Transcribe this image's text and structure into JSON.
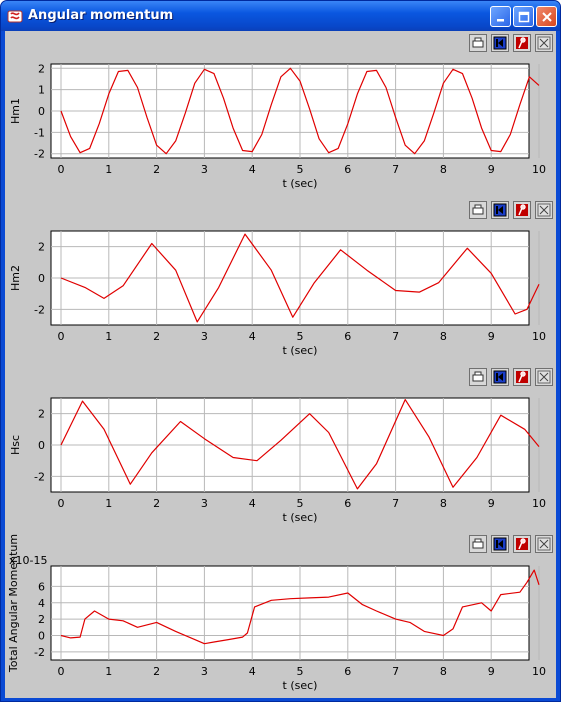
{
  "window": {
    "title": "Angular momentum",
    "controls": [
      "minimize-icon",
      "maximize-icon",
      "close-icon"
    ]
  },
  "toolbar_icons": [
    "print-icon",
    "reset-view-icon",
    "marker-icon",
    "fit-zoom-icon"
  ],
  "chart_data": [
    {
      "type": "line",
      "ylabel": "Hm1",
      "xlabel": "t (sec)",
      "xlim": [
        0,
        10
      ],
      "ylim": [
        -2.2,
        2.2
      ],
      "xticks": [
        "0",
        "1",
        "2",
        "3",
        "4",
        "5",
        "6",
        "7",
        "8",
        "9",
        "10"
      ],
      "yticks": [
        2,
        1,
        0,
        -1,
        -2
      ],
      "grid": true,
      "series": [
        {
          "color": "#e00000",
          "x": [
            0,
            0.2,
            0.4,
            0.6,
            0.8,
            1,
            1.2,
            1.4,
            1.6,
            1.8,
            2,
            2.2,
            2.4,
            2.6,
            2.8,
            3,
            3.2,
            3.4,
            3.6,
            3.8,
            4,
            4.2,
            4.4,
            4.6,
            4.8,
            5,
            5.2,
            5.4,
            5.6,
            5.8,
            6,
            6.2,
            6.4,
            6.6,
            6.8,
            7,
            7.2,
            7.4,
            7.6,
            7.8,
            8,
            8.2,
            8.4,
            8.6,
            8.8,
            9,
            9.2,
            9.4,
            9.6,
            9.8,
            10
          ],
          "y": [
            0,
            -1.2,
            -1.95,
            -1.75,
            -0.6,
            0.8,
            1.85,
            1.9,
            1.1,
            -0.3,
            -1.6,
            -2.0,
            -1.4,
            -0.1,
            1.3,
            1.95,
            1.75,
            0.6,
            -0.8,
            -1.85,
            -1.9,
            -1.1,
            0.3,
            1.6,
            2.0,
            1.4,
            0.1,
            -1.3,
            -1.95,
            -1.75,
            -0.6,
            0.8,
            1.85,
            1.9,
            1.1,
            -0.3,
            -1.6,
            -2.0,
            -1.4,
            -0.1,
            1.3,
            1.95,
            1.75,
            0.6,
            -0.8,
            -1.85,
            -1.9,
            -1.1,
            0.3,
            1.6,
            1.2
          ]
        }
      ]
    },
    {
      "type": "line",
      "ylabel": "Hm2",
      "xlabel": "t (sec)",
      "xlim": [
        0,
        10
      ],
      "ylim": [
        -3,
        3
      ],
      "xticks": [
        "0",
        "1",
        "2",
        "3",
        "4",
        "5",
        "6",
        "7",
        "8",
        "9",
        "10"
      ],
      "yticks": [
        2,
        0,
        -2
      ],
      "grid": true,
      "series": [
        {
          "color": "#e00000",
          "x": [
            0,
            0.5,
            0.9,
            1.3,
            1.9,
            2.4,
            2.85,
            3.3,
            3.85,
            4.4,
            4.85,
            5.3,
            5.85,
            6.4,
            7.0,
            7.5,
            7.9,
            8.5,
            9.0,
            9.5,
            9.75,
            10
          ],
          "y": [
            0,
            -0.6,
            -1.3,
            -0.5,
            2.2,
            0.5,
            -2.8,
            -0.6,
            2.8,
            0.5,
            -2.5,
            -0.3,
            1.8,
            0.5,
            -0.8,
            -0.9,
            -0.3,
            1.9,
            0.3,
            -2.3,
            -2.0,
            -0.4
          ]
        }
      ]
    },
    {
      "type": "line",
      "ylabel": "Hsc",
      "xlabel": "t (sec)",
      "xlim": [
        0,
        10
      ],
      "ylim": [
        -3,
        3
      ],
      "xticks": [
        "0",
        "1",
        "2",
        "3",
        "4",
        "5",
        "6",
        "7",
        "8",
        "9",
        "10"
      ],
      "yticks": [
        2,
        0,
        -2
      ],
      "grid": true,
      "series": [
        {
          "color": "#e00000",
          "x": [
            0,
            0.45,
            0.9,
            1.45,
            1.9,
            2.5,
            3.0,
            3.6,
            4.1,
            4.6,
            5.2,
            5.6,
            6.2,
            6.6,
            7.2,
            7.7,
            8.2,
            8.7,
            9.2,
            9.7,
            10
          ],
          "y": [
            0,
            2.8,
            1.0,
            -2.5,
            -0.5,
            1.5,
            0.4,
            -0.8,
            -1.0,
            0.3,
            2.0,
            0.8,
            -2.8,
            -1.2,
            2.9,
            0.5,
            -2.7,
            -0.8,
            1.9,
            1.0,
            -0.1
          ]
        }
      ]
    },
    {
      "type": "line",
      "ylabel": "Total Angular Momentum",
      "y_scale_label": "x10-15",
      "xlabel": "t (sec)",
      "xlim": [
        0,
        10
      ],
      "ylim": [
        -3,
        8.5
      ],
      "xticks": [
        "0",
        "1",
        "2",
        "3",
        "4",
        "5",
        "6",
        "7",
        "8",
        "9",
        "10"
      ],
      "yticks": [
        6,
        4,
        2,
        0,
        -2
      ],
      "grid": true,
      "series": [
        {
          "color": "#e00000",
          "x": [
            0,
            0.2,
            0.4,
            0.5,
            0.7,
            1.0,
            1.3,
            1.6,
            2.0,
            2.4,
            2.8,
            3.0,
            3.2,
            3.5,
            3.8,
            3.9,
            4.05,
            4.4,
            4.8,
            5.2,
            5.6,
            6.0,
            6.3,
            6.6,
            7.0,
            7.3,
            7.6,
            8.0,
            8.2,
            8.4,
            8.8,
            9.0,
            9.2,
            9.6,
            9.75,
            9.9,
            10
          ],
          "y": [
            0,
            -0.3,
            -0.2,
            2.0,
            3.0,
            2.0,
            1.8,
            1.0,
            1.6,
            0.5,
            -0.5,
            -1.0,
            -0.8,
            -0.5,
            -0.2,
            0.3,
            3.5,
            4.3,
            4.5,
            4.6,
            4.7,
            5.2,
            3.8,
            3.0,
            2.0,
            1.6,
            0.5,
            0.0,
            0.8,
            3.5,
            4.0,
            3.0,
            5.0,
            5.3,
            6.5,
            8.0,
            6.2
          ]
        }
      ]
    }
  ]
}
